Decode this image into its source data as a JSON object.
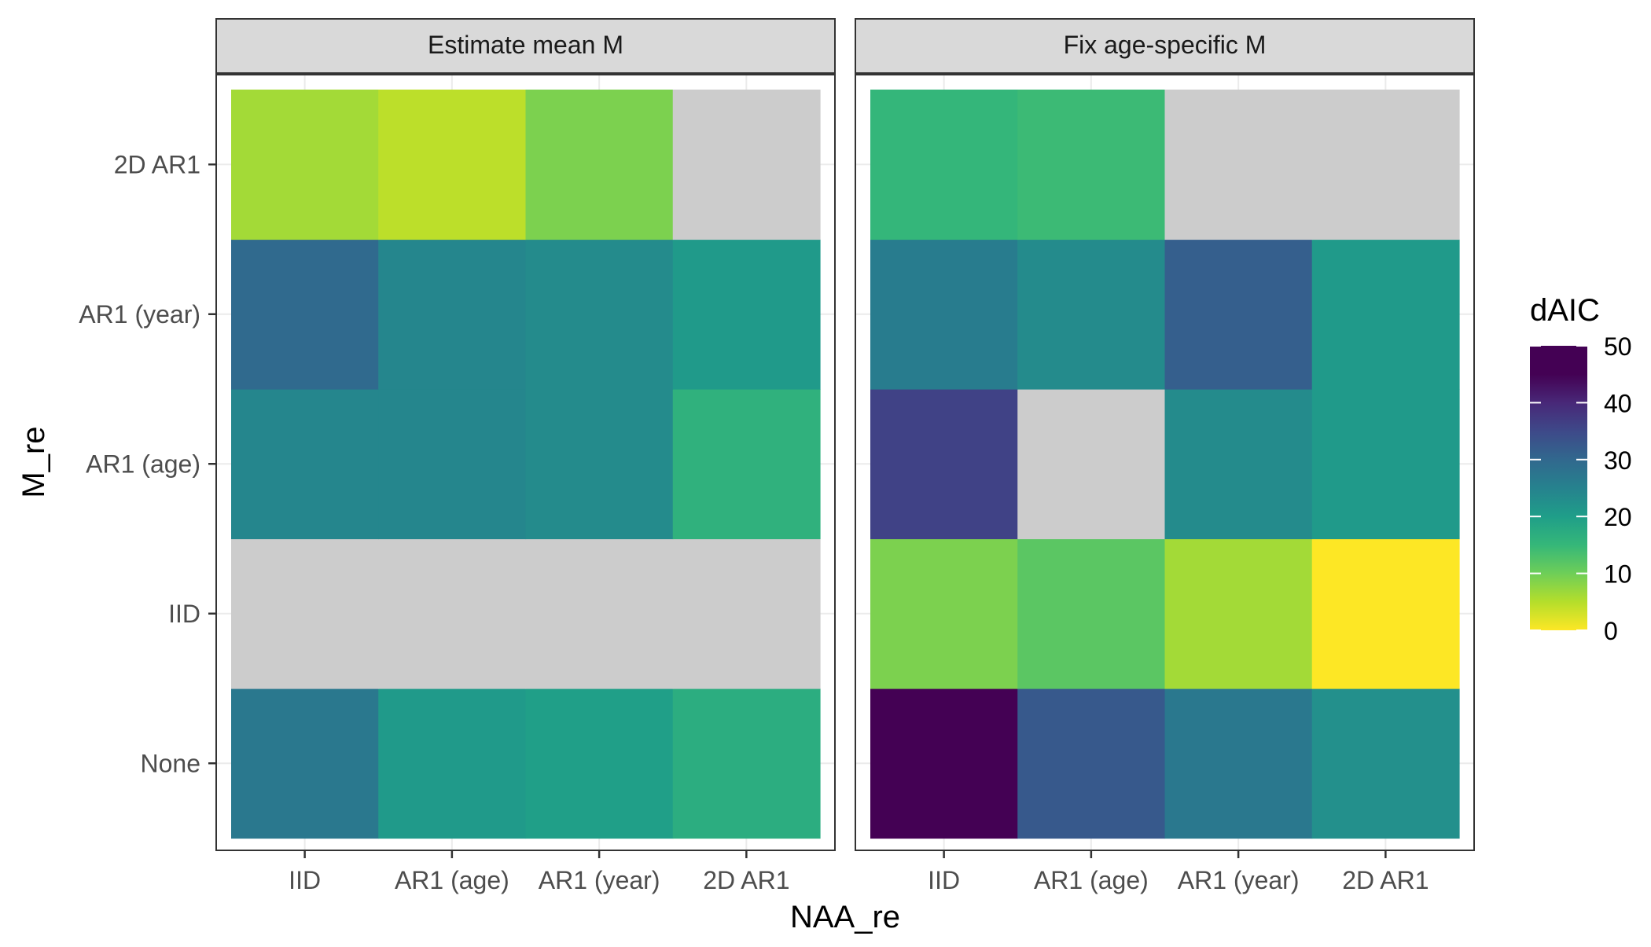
{
  "chart_data": {
    "type": "heatmap",
    "xlabel": "NAA_re",
    "ylabel": "M_re",
    "x_categories": [
      "IID",
      "AR1 (age)",
      "AR1 (year)",
      "2D AR1"
    ],
    "y_categories": [
      "None",
      "IID",
      "AR1 (age)",
      "AR1 (year)",
      "2D AR1"
    ],
    "legend": {
      "title": "dAIC",
      "position": "right",
      "range": [
        0,
        50
      ],
      "ticks": [
        0,
        10,
        20,
        30,
        40,
        50
      ],
      "palette": "viridis-reversed",
      "na_color": "#cccccc"
    },
    "panels": [
      {
        "title": "Estimate mean M",
        "values": [
          [
            30,
            23,
            22,
            19
          ],
          [
            null,
            null,
            null,
            null
          ],
          [
            27,
            27,
            26,
            18
          ],
          [
            33,
            27,
            26,
            23
          ],
          [
            7,
            5,
            10,
            null
          ]
        ]
      },
      {
        "title": "Fix age-specific M",
        "values": [
          [
            50,
            36,
            30,
            25
          ],
          [
            10,
            13,
            7,
            0
          ],
          [
            40,
            null,
            26,
            23
          ],
          [
            29,
            26,
            35,
            23
          ],
          [
            17,
            16,
            null,
            null
          ]
        ]
      }
    ]
  }
}
